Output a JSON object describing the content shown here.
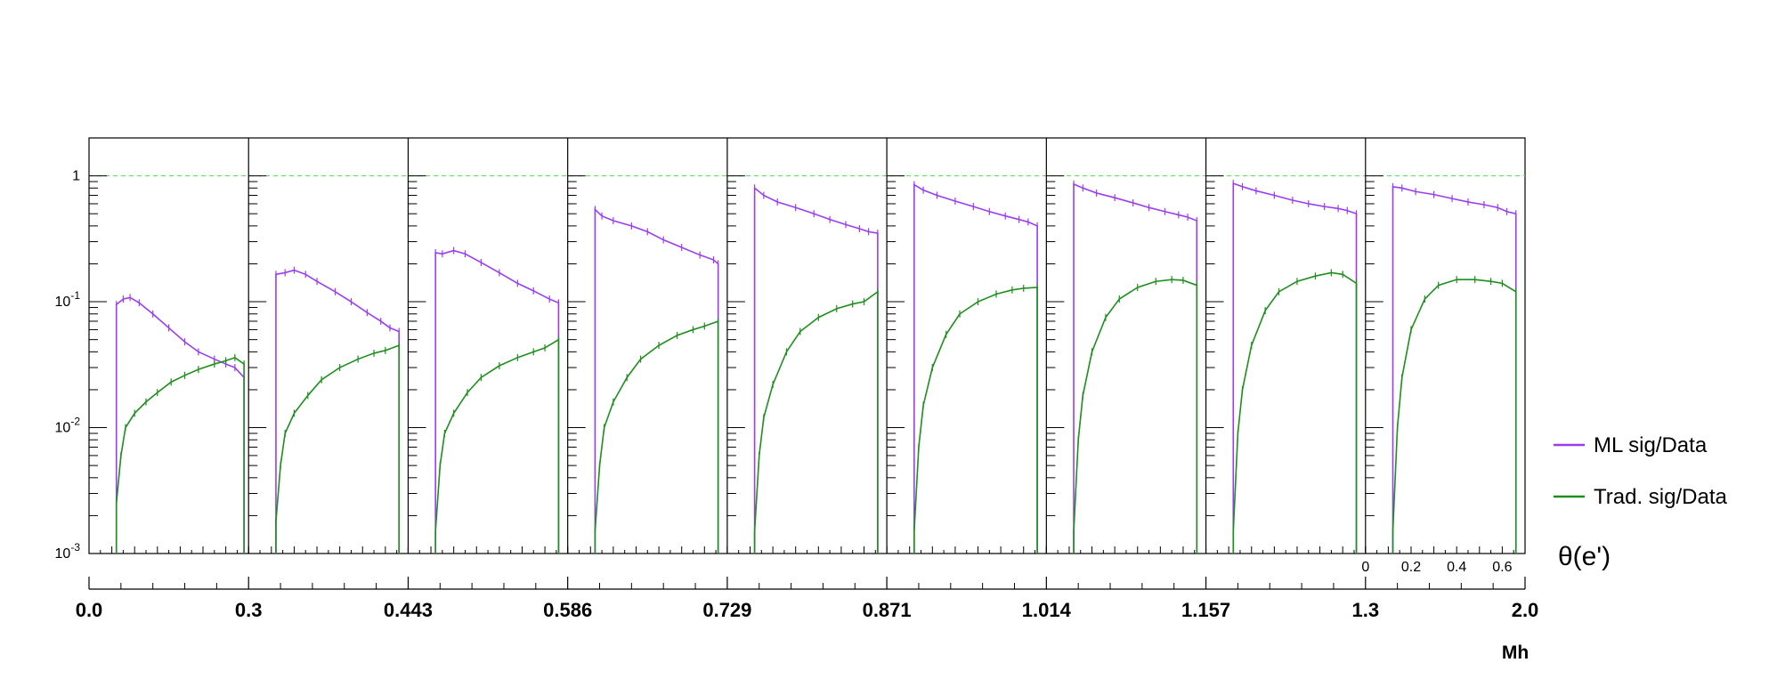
{
  "chart_data": {
    "type": "line",
    "panel_count": 9,
    "y_scale": "log",
    "ylim": [
      0.001,
      2
    ],
    "y_tick_labels": [
      "10^-3",
      "10^-2",
      "10^-1",
      "1"
    ],
    "reference_line": {
      "y": 1,
      "style": "dashed",
      "color": "#66dd66"
    },
    "inner_x_range": [
      0,
      0.7
    ],
    "inner_x_tick_labels": [
      "0",
      "0.2",
      "0.4",
      "0.6"
    ],
    "inner_x_title": "θ(e')",
    "bin_edges": [
      "0.0",
      "0.3",
      "0.443",
      "0.586",
      "0.729",
      "0.871",
      "1.014",
      "1.157",
      "1.3",
      "2.0"
    ],
    "outer_x_title": "Mh",
    "series": [
      {
        "name": "ML sig/Data",
        "color": "#9b3cf5",
        "panels": [
          {
            "theta_start": 0.12,
            "theta_end": 0.68,
            "points": [
              [
                0.12,
                0.095
              ],
              [
                0.15,
                0.105
              ],
              [
                0.18,
                0.108
              ],
              [
                0.22,
                0.098
              ],
              [
                0.28,
                0.08
              ],
              [
                0.35,
                0.062
              ],
              [
                0.42,
                0.048
              ],
              [
                0.48,
                0.04
              ],
              [
                0.55,
                0.035
              ],
              [
                0.6,
                0.032
              ],
              [
                0.64,
                0.03
              ],
              [
                0.68,
                0.025
              ]
            ]
          },
          {
            "theta_start": 0.12,
            "theta_end": 0.66,
            "points": [
              [
                0.12,
                0.165
              ],
              [
                0.16,
                0.17
              ],
              [
                0.2,
                0.178
              ],
              [
                0.25,
                0.165
              ],
              [
                0.3,
                0.145
              ],
              [
                0.38,
                0.12
              ],
              [
                0.45,
                0.1
              ],
              [
                0.52,
                0.082
              ],
              [
                0.58,
                0.07
              ],
              [
                0.62,
                0.062
              ],
              [
                0.66,
                0.058
              ]
            ]
          },
          {
            "theta_start": 0.12,
            "theta_end": 0.66,
            "points": [
              [
                0.12,
                0.245
              ],
              [
                0.15,
                0.24
              ],
              [
                0.2,
                0.255
              ],
              [
                0.25,
                0.24
              ],
              [
                0.32,
                0.205
              ],
              [
                0.4,
                0.17
              ],
              [
                0.48,
                0.14
              ],
              [
                0.55,
                0.122
              ],
              [
                0.62,
                0.105
              ],
              [
                0.66,
                0.098
              ]
            ]
          },
          {
            "theta_start": 0.12,
            "theta_end": 0.66,
            "points": [
              [
                0.12,
                0.54
              ],
              [
                0.15,
                0.48
              ],
              [
                0.2,
                0.44
              ],
              [
                0.28,
                0.4
              ],
              [
                0.35,
                0.36
              ],
              [
                0.42,
                0.31
              ],
              [
                0.5,
                0.27
              ],
              [
                0.58,
                0.235
              ],
              [
                0.64,
                0.215
              ],
              [
                0.66,
                0.2
              ]
            ]
          },
          {
            "theta_start": 0.12,
            "theta_end": 0.66,
            "points": [
              [
                0.12,
                0.8
              ],
              [
                0.16,
                0.7
              ],
              [
                0.22,
                0.62
              ],
              [
                0.3,
                0.56
              ],
              [
                0.38,
                0.5
              ],
              [
                0.45,
                0.45
              ],
              [
                0.52,
                0.41
              ],
              [
                0.58,
                0.38
              ],
              [
                0.62,
                0.36
              ],
              [
                0.66,
                0.35
              ]
            ]
          },
          {
            "theta_start": 0.12,
            "theta_end": 0.66,
            "points": [
              [
                0.12,
                0.85
              ],
              [
                0.16,
                0.77
              ],
              [
                0.22,
                0.7
              ],
              [
                0.3,
                0.63
              ],
              [
                0.38,
                0.57
              ],
              [
                0.45,
                0.52
              ],
              [
                0.52,
                0.48
              ],
              [
                0.58,
                0.45
              ],
              [
                0.62,
                0.43
              ],
              [
                0.66,
                0.4
              ]
            ]
          },
          {
            "theta_start": 0.12,
            "theta_end": 0.66,
            "points": [
              [
                0.12,
                0.86
              ],
              [
                0.16,
                0.8
              ],
              [
                0.22,
                0.73
              ],
              [
                0.3,
                0.67
              ],
              [
                0.38,
                0.61
              ],
              [
                0.45,
                0.56
              ],
              [
                0.52,
                0.52
              ],
              [
                0.58,
                0.49
              ],
              [
                0.62,
                0.47
              ],
              [
                0.66,
                0.44
              ]
            ]
          },
          {
            "theta_start": 0.12,
            "theta_end": 0.66,
            "points": [
              [
                0.12,
                0.87
              ],
              [
                0.16,
                0.82
              ],
              [
                0.22,
                0.76
              ],
              [
                0.3,
                0.7
              ],
              [
                0.38,
                0.64
              ],
              [
                0.45,
                0.6
              ],
              [
                0.52,
                0.57
              ],
              [
                0.58,
                0.55
              ],
              [
                0.62,
                0.53
              ],
              [
                0.66,
                0.5
              ]
            ]
          },
          {
            "theta_start": 0.12,
            "theta_end": 0.66,
            "points": [
              [
                0.12,
                0.82
              ],
              [
                0.16,
                0.8
              ],
              [
                0.22,
                0.75
              ],
              [
                0.3,
                0.71
              ],
              [
                0.38,
                0.66
              ],
              [
                0.45,
                0.62
              ],
              [
                0.52,
                0.59
              ],
              [
                0.58,
                0.56
              ],
              [
                0.62,
                0.52
              ],
              [
                0.66,
                0.5
              ]
            ]
          }
        ]
      },
      {
        "name": "Trad. sig/Data",
        "color": "#1c8f1c",
        "panels": [
          {
            "theta_start": 0.12,
            "theta_end": 0.68,
            "points": [
              [
                0.12,
                0.0025
              ],
              [
                0.14,
                0.006
              ],
              [
                0.16,
                0.01
              ],
              [
                0.2,
                0.013
              ],
              [
                0.25,
                0.016
              ],
              [
                0.3,
                0.019
              ],
              [
                0.36,
                0.023
              ],
              [
                0.42,
                0.026
              ],
              [
                0.48,
                0.029
              ],
              [
                0.55,
                0.032
              ],
              [
                0.6,
                0.034
              ],
              [
                0.64,
                0.036
              ],
              [
                0.68,
                0.032
              ]
            ]
          },
          {
            "theta_start": 0.12,
            "theta_end": 0.66,
            "points": [
              [
                0.12,
                0.0018
              ],
              [
                0.14,
                0.005
              ],
              [
                0.16,
                0.009
              ],
              [
                0.2,
                0.013
              ],
              [
                0.26,
                0.018
              ],
              [
                0.32,
                0.024
              ],
              [
                0.4,
                0.03
              ],
              [
                0.48,
                0.035
              ],
              [
                0.55,
                0.039
              ],
              [
                0.6,
                0.041
              ],
              [
                0.66,
                0.045
              ]
            ]
          },
          {
            "theta_start": 0.12,
            "theta_end": 0.66,
            "points": [
              [
                0.12,
                0.0015
              ],
              [
                0.14,
                0.005
              ],
              [
                0.16,
                0.009
              ],
              [
                0.2,
                0.013
              ],
              [
                0.26,
                0.019
              ],
              [
                0.32,
                0.025
              ],
              [
                0.4,
                0.031
              ],
              [
                0.48,
                0.036
              ],
              [
                0.55,
                0.04
              ],
              [
                0.6,
                0.043
              ],
              [
                0.66,
                0.05
              ]
            ]
          },
          {
            "theta_start": 0.12,
            "theta_end": 0.66,
            "points": [
              [
                0.12,
                0.0015
              ],
              [
                0.14,
                0.005
              ],
              [
                0.16,
                0.01
              ],
              [
                0.2,
                0.016
              ],
              [
                0.26,
                0.025
              ],
              [
                0.32,
                0.035
              ],
              [
                0.4,
                0.045
              ],
              [
                0.48,
                0.054
              ],
              [
                0.55,
                0.06
              ],
              [
                0.6,
                0.064
              ],
              [
                0.66,
                0.07
              ]
            ]
          },
          {
            "theta_start": 0.12,
            "theta_end": 0.66,
            "points": [
              [
                0.12,
                0.0015
              ],
              [
                0.14,
                0.006
              ],
              [
                0.16,
                0.012
              ],
              [
                0.2,
                0.022
              ],
              [
                0.26,
                0.04
              ],
              [
                0.32,
                0.058
              ],
              [
                0.4,
                0.075
              ],
              [
                0.48,
                0.088
              ],
              [
                0.55,
                0.096
              ],
              [
                0.6,
                0.1
              ],
              [
                0.66,
                0.12
              ]
            ]
          },
          {
            "theta_start": 0.12,
            "theta_end": 0.66,
            "points": [
              [
                0.12,
                0.0015
              ],
              [
                0.14,
                0.007
              ],
              [
                0.16,
                0.015
              ],
              [
                0.2,
                0.03
              ],
              [
                0.26,
                0.055
              ],
              [
                0.32,
                0.08
              ],
              [
                0.4,
                0.1
              ],
              [
                0.48,
                0.115
              ],
              [
                0.55,
                0.124
              ],
              [
                0.6,
                0.128
              ],
              [
                0.66,
                0.13
              ]
            ]
          },
          {
            "theta_start": 0.12,
            "theta_end": 0.66,
            "points": [
              [
                0.12,
                0.0015
              ],
              [
                0.14,
                0.008
              ],
              [
                0.16,
                0.018
              ],
              [
                0.2,
                0.04
              ],
              [
                0.26,
                0.075
              ],
              [
                0.32,
                0.105
              ],
              [
                0.4,
                0.13
              ],
              [
                0.48,
                0.145
              ],
              [
                0.55,
                0.15
              ],
              [
                0.6,
                0.148
              ],
              [
                0.66,
                0.135
              ]
            ]
          },
          {
            "theta_start": 0.12,
            "theta_end": 0.66,
            "points": [
              [
                0.12,
                0.0015
              ],
              [
                0.14,
                0.009
              ],
              [
                0.16,
                0.02
              ],
              [
                0.2,
                0.045
              ],
              [
                0.26,
                0.085
              ],
              [
                0.32,
                0.12
              ],
              [
                0.4,
                0.145
              ],
              [
                0.48,
                0.16
              ],
              [
                0.55,
                0.17
              ],
              [
                0.6,
                0.165
              ],
              [
                0.66,
                0.14
              ]
            ]
          },
          {
            "theta_start": 0.12,
            "theta_end": 0.66,
            "points": [
              [
                0.12,
                0.0015
              ],
              [
                0.14,
                0.01
              ],
              [
                0.16,
                0.025
              ],
              [
                0.2,
                0.06
              ],
              [
                0.26,
                0.105
              ],
              [
                0.32,
                0.135
              ],
              [
                0.4,
                0.15
              ],
              [
                0.48,
                0.15
              ],
              [
                0.55,
                0.145
              ],
              [
                0.6,
                0.14
              ],
              [
                0.66,
                0.12
              ]
            ]
          }
        ]
      }
    ]
  }
}
